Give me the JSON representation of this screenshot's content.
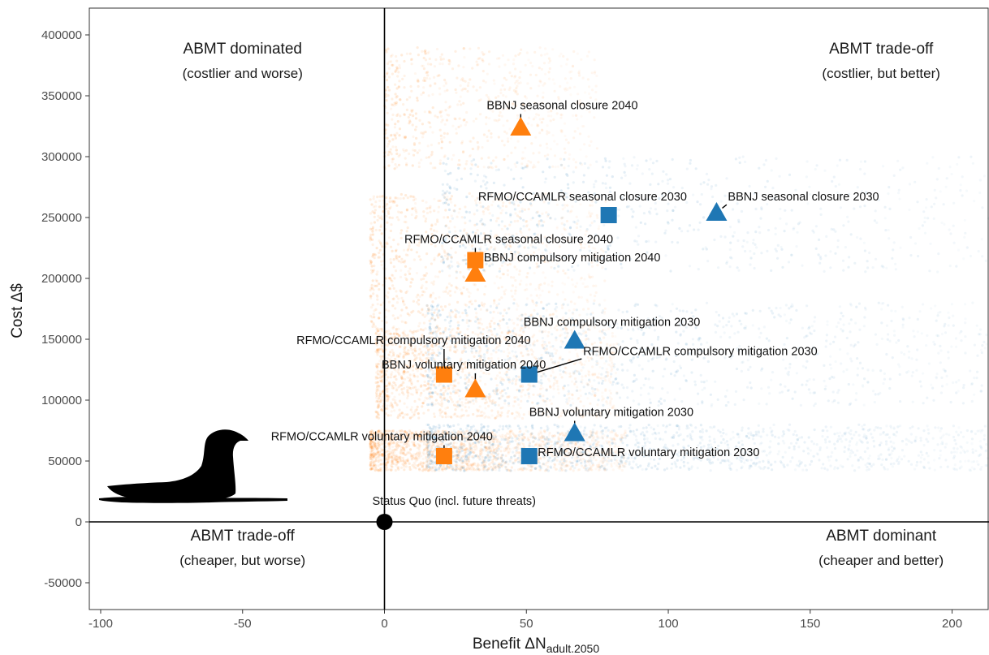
{
  "chart_data": {
    "type": "scatter",
    "xlabel": "Benefit ΔN",
    "xlabel_subscript": "adult.2050",
    "ylabel": "Cost Δ$",
    "xlim": [
      -104,
      213
    ],
    "ylim": [
      -72000,
      422000
    ],
    "x_ticks": [
      -100,
      -50,
      0,
      50,
      100,
      150,
      200
    ],
    "y_ticks": [
      -50000,
      0,
      50000,
      100000,
      150000,
      200000,
      250000,
      300000,
      350000,
      400000
    ],
    "grid": false,
    "colors": {
      "2030": "#1f77b4",
      "2040": "#ff7f0e",
      "status_quo": "#000000"
    },
    "quadrant_labels": [
      {
        "id": "top-left",
        "title": "ABMT dominated",
        "subtitle": "(costlier and worse)",
        "x": -50,
        "y": 370000,
        "anchor": "middle"
      },
      {
        "id": "top-right",
        "title": "ABMT trade-off",
        "subtitle": "(costlier, but better)",
        "x": 175,
        "y": 370000,
        "anchor": "middle"
      },
      {
        "id": "bottom-left",
        "title": "ABMT trade-off",
        "subtitle": "(cheaper, but worse)",
        "x": -50,
        "y": -30000,
        "anchor": "middle"
      },
      {
        "id": "bottom-right",
        "title": "ABMT dominant",
        "subtitle": "(cheaper and better)",
        "x": 175,
        "y": -30000,
        "anchor": "middle"
      }
    ],
    "points": [
      {
        "label": "Status Quo (incl. future threats)",
        "x": 0,
        "y": 0,
        "shape": "circle",
        "group": "status_quo",
        "label_x": 0,
        "label_y": 14000,
        "text_anchor": "start",
        "label_dx": -15
      },
      {
        "label": "BBNJ seasonal closure 2040",
        "x": 48,
        "y": 324000,
        "shape": "triangle",
        "group": "2040",
        "label_x": 36,
        "label_y": 339000
      },
      {
        "label": "RFMO/CCAMLR seasonal closure 2030",
        "x": 79,
        "y": 252000,
        "shape": "square",
        "group": "2030",
        "label_x": 33,
        "label_y": 264000
      },
      {
        "label": "BBNJ seasonal closure 2030",
        "x": 117,
        "y": 254000,
        "shape": "triangle",
        "group": "2030",
        "label_x": 121,
        "label_y": 264000
      },
      {
        "label": "RFMO/CCAMLR seasonal closure 2040",
        "x": 32,
        "y": 215000,
        "shape": "square",
        "group": "2040",
        "label_x": 7,
        "label_y": 229000
      },
      {
        "label": "BBNJ compulsory mitigation 2040",
        "x": 32,
        "y": 204000,
        "shape": "triangle",
        "group": "2040",
        "label_x": 35,
        "label_y": 214000
      },
      {
        "label": "BBNJ compulsory mitigation 2030",
        "x": 67,
        "y": 149000,
        "shape": "triangle",
        "group": "2030",
        "label_x": 49,
        "label_y": 161000
      },
      {
        "label": "RFMO/CCAMLR compulsory mitigation 2040",
        "x": 21,
        "y": 121000,
        "shape": "square",
        "group": "2040",
        "label_x": -31,
        "label_y": 146000
      },
      {
        "label": "RFMO/CCAMLR compulsory mitigation 2030",
        "x": 51,
        "y": 121000,
        "shape": "square",
        "group": "2030",
        "label_x": 70,
        "label_y": 137000
      },
      {
        "label": "BBNJ voluntary mitigation 2040",
        "x": 32,
        "y": 109000,
        "shape": "triangle",
        "group": "2040",
        "label_x": -1,
        "label_y": 126000
      },
      {
        "label": "BBNJ voluntary mitigation 2030",
        "x": 67,
        "y": 73000,
        "shape": "triangle",
        "group": "2030",
        "label_x": 51,
        "label_y": 87000
      },
      {
        "label": "RFMO/CCAMLR voluntary mitigation 2040",
        "x": 21,
        "y": 54000,
        "shape": "square",
        "group": "2040",
        "label_x": -40,
        "label_y": 67000
      },
      {
        "label": "RFMO/CCAMLR voluntary mitigation 2030",
        "x": 51,
        "y": 54000,
        "shape": "square",
        "group": "2030",
        "label_x": 54,
        "label_y": 54000
      }
    ],
    "uncertainty_clouds": [
      {
        "group": "2040",
        "x_range": [
          0,
          75
        ],
        "y_range": [
          290000,
          390000
        ],
        "density": 0.5
      },
      {
        "group": "2040",
        "x_range": [
          -5,
          78
        ],
        "y_range": [
          160000,
          270000
        ],
        "density": 0.7
      },
      {
        "group": "2040",
        "x_range": [
          -3,
          82
        ],
        "y_range": [
          85000,
          160000
        ],
        "density": 1.0
      },
      {
        "group": "2040",
        "x_range": [
          -5,
          85
        ],
        "y_range": [
          42000,
          75000
        ],
        "density": 1.2
      },
      {
        "group": "2030",
        "x_range": [
          20,
          213
        ],
        "y_range": [
          205000,
          300000
        ],
        "density": 0.5
      },
      {
        "group": "2030",
        "x_range": [
          15,
          213
        ],
        "y_range": [
          95000,
          180000
        ],
        "density": 0.7
      },
      {
        "group": "2030",
        "x_range": [
          15,
          213
        ],
        "y_range": [
          42000,
          80000
        ],
        "density": 0.9
      }
    ],
    "icon": "albatross-silhouette-icon"
  }
}
